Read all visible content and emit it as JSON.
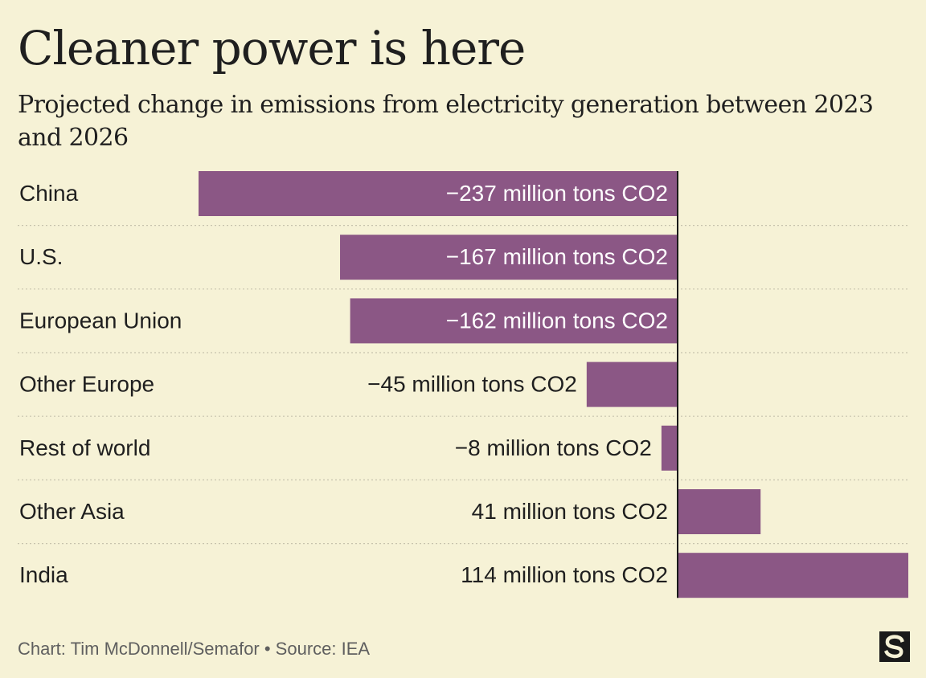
{
  "title": "Cleaner power is here",
  "subtitle": "Projected change in emissions from electricity generation between 2023 and 2026",
  "footer": "Chart: Tim McDonnell/Semafor • Source: IEA",
  "colors": {
    "background": "#f6f2d6",
    "bar": "#8b5785",
    "axis": "#1a1a1a",
    "gridline": "#c7c3ad",
    "text": "#1f1f1f",
    "muted_text": "#5f5f5f"
  },
  "chart_data": {
    "type": "bar",
    "orientation": "horizontal",
    "categories": [
      "China",
      "U.S.",
      "European Union",
      "Other Europe",
      "Rest of world",
      "Other Asia",
      "India"
    ],
    "values": [
      -237,
      -167,
      -162,
      -45,
      -8,
      41,
      114
    ],
    "data_labels": [
      "−237 million tons CO2",
      "−167 million tons CO2",
      "−162 million tons CO2",
      "−45 million tons CO2",
      "−8 million tons CO2",
      "41 million tons CO2",
      "114 million tons CO2"
    ],
    "unit": "million tons CO2",
    "xlim": [
      -237,
      114
    ],
    "grid": false,
    "legend": "none"
  }
}
